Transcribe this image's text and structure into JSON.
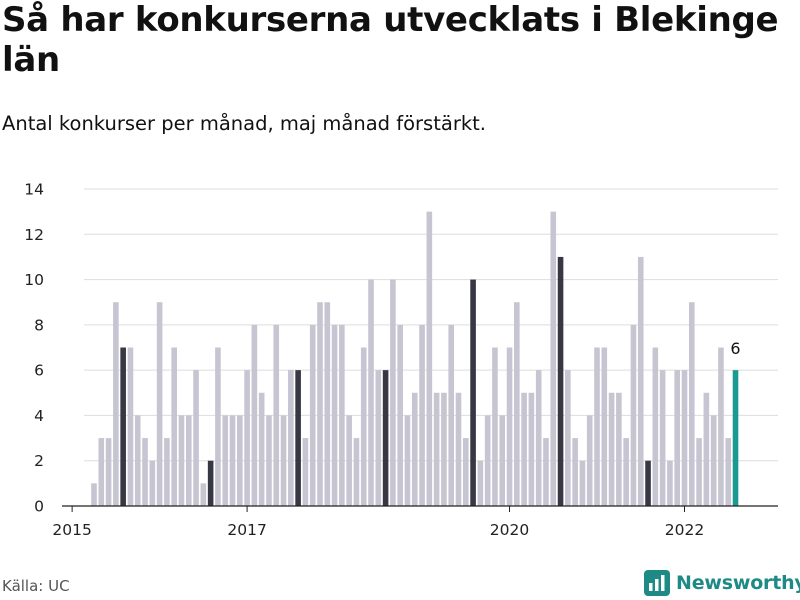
{
  "title": "Så har konkurserna utvecklats i Blekinge län",
  "subtitle": "Antal konkurser per månad, maj månad förstärkt.",
  "source": "Källa: UC",
  "brand": "Newsworthy",
  "colors": {
    "bar": "#c6c5d1",
    "highlight": "#383844",
    "latest": "#1a9a93",
    "grid": "#dddddd",
    "axis": "#222222",
    "brand": "#1d8a86"
  },
  "chart_data": {
    "type": "bar",
    "x_tick_labels": [
      "2015",
      "2017",
      "2020",
      "2022"
    ],
    "ylim": [
      0,
      14
    ],
    "y_ticks": [
      0,
      2,
      4,
      6,
      8,
      10,
      12,
      14
    ],
    "grid": true,
    "series": [
      {
        "values": [
          1,
          3,
          3,
          9,
          7,
          7,
          4,
          3,
          2,
          9,
          3,
          7,
          4,
          4,
          6,
          1,
          2,
          7,
          4,
          4,
          4,
          6,
          8,
          5,
          4,
          8,
          4,
          6,
          6,
          3,
          8,
          9,
          9,
          8,
          8,
          4,
          3,
          7,
          10,
          6,
          6,
          10,
          8,
          4,
          5,
          8,
          13,
          5,
          5,
          8,
          5,
          3,
          10,
          2,
          4,
          7,
          4,
          7,
          9,
          5,
          5,
          6,
          3,
          13,
          11,
          6,
          3,
          2,
          4,
          7,
          7,
          5,
          5,
          3,
          8,
          11,
          2,
          7,
          6,
          2,
          6,
          6,
          9,
          3,
          5,
          4,
          7,
          3,
          6
        ],
        "highlight_indices": [
          4,
          16,
          28,
          40,
          52,
          64,
          76
        ],
        "latest_index": 88,
        "latest_label": "6"
      }
    ]
  }
}
